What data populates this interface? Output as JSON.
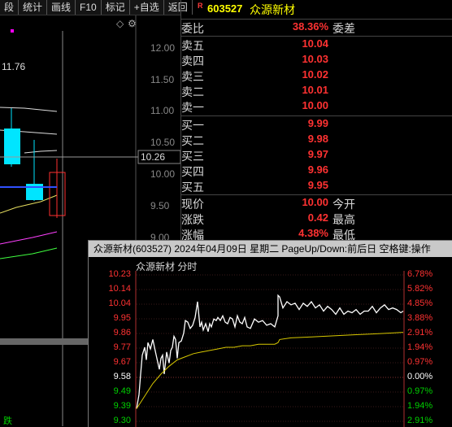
{
  "toolbar": [
    "段",
    "统计",
    "画线",
    "F10",
    "标记",
    "+自选",
    "返回"
  ],
  "kline": {
    "high_label": "11.76",
    "price_ticks": [
      "12.00",
      "11.50",
      "11.00",
      "10.50",
      "10.00",
      "9.50",
      "9.00"
    ],
    "current_price_tag": "10.26",
    "bottom_label": "跌"
  },
  "quote": {
    "r_mark": "R",
    "code": "603527",
    "name": "众源新材",
    "weibi_label": "委比",
    "weibi_value": "38.36%",
    "weicha_label": "委差",
    "asks": [
      {
        "label": "卖五",
        "price": "10.04"
      },
      {
        "label": "卖四",
        "price": "10.03"
      },
      {
        "label": "卖三",
        "price": "10.02"
      },
      {
        "label": "卖二",
        "price": "10.01"
      },
      {
        "label": "卖一",
        "price": "10.00"
      }
    ],
    "bids": [
      {
        "label": "买一",
        "price": "9.99"
      },
      {
        "label": "买二",
        "price": "9.98"
      },
      {
        "label": "买三",
        "price": "9.97"
      },
      {
        "label": "买四",
        "price": "9.96"
      },
      {
        "label": "买五",
        "price": "9.95"
      }
    ],
    "stats": [
      {
        "label": "现价",
        "value": "10.00",
        "label2": "今开"
      },
      {
        "label": "涨跌",
        "value": "0.42",
        "label2": "最高"
      },
      {
        "label": "涨幅",
        "value": "4.38%",
        "label2": "最低"
      }
    ]
  },
  "popup": {
    "title": "众源新材(603527) 2024年04月09日 星期二 PageUp/Down:前后日 空格键:操作",
    "subtitle": "众源新材  分时"
  },
  "chart_data": {
    "type": "line",
    "title": "众源新材  分时",
    "ylim": [
      9.3,
      10.23
    ],
    "price_ticks": [
      "10.23",
      "10.14",
      "10.04",
      "9.95",
      "9.86",
      "9.77",
      "9.67",
      "9.58",
      "9.49",
      "9.39",
      "9.30"
    ],
    "pct_ticks": [
      "6.78%",
      "5.82%",
      "4.85%",
      "3.88%",
      "2.91%",
      "1.94%",
      "0.97%",
      "0.00%",
      "0.97%",
      "1.94%",
      "2.91%"
    ],
    "tick_colors": [
      "#ff3232",
      "#ff3232",
      "#ff3232",
      "#ff3232",
      "#ff3232",
      "#ff3232",
      "#ff3232",
      "#ffffff",
      "#00d000",
      "#00d000",
      "#00d000"
    ],
    "series": [
      {
        "color": "#ffffff",
        "x": [
          0,
          3,
          5,
          7,
          10,
          12,
          14,
          17,
          20,
          22,
          25,
          28,
          30,
          32,
          34,
          37,
          40,
          42,
          44,
          46,
          48,
          50,
          52,
          55,
          58,
          60,
          63,
          66,
          69,
          72,
          75,
          78,
          80,
          82,
          85,
          88,
          90,
          92,
          95,
          98,
          100,
          103,
          106,
          109,
          112,
          115,
          118,
          121,
          124,
          127,
          130,
          133,
          136,
          140,
          145,
          150,
          155,
          160,
          165,
          170,
          174,
          174,
          176,
          180,
          185,
          190,
          195,
          200,
          205,
          210,
          215,
          220,
          225,
          230,
          235,
          240,
          245,
          250,
          255,
          260,
          265,
          270,
          275,
          280,
          285,
          290,
          295,
          300,
          305,
          310,
          315,
          320,
          325,
          328
        ],
        "y": [
          9.38,
          9.47,
          9.6,
          9.72,
          9.77,
          9.69,
          9.8,
          9.76,
          9.82,
          9.77,
          9.7,
          9.63,
          9.7,
          9.72,
          9.6,
          9.74,
          9.67,
          9.75,
          9.77,
          9.84,
          9.82,
          9.7,
          9.8,
          9.81,
          9.86,
          9.94,
          9.93,
          9.89,
          9.91,
          9.96,
          10.06,
          9.9,
          9.93,
          9.88,
          9.92,
          9.87,
          9.92,
          9.9,
          9.95,
          9.94,
          9.96,
          9.94,
          9.97,
          9.93,
          9.92,
          9.96,
          9.95,
          9.9,
          9.97,
          9.93,
          9.92,
          9.96,
          9.9,
          9.89,
          9.95,
          9.93,
          9.94,
          9.91,
          9.92,
          9.9,
          9.97,
          10.1,
          10.09,
          10.02,
          10.06,
          10.04,
          10.05,
          10.01,
          10.05,
          10.03,
          10.06,
          10.02,
          10.04,
          10.0,
          10.03,
          10.01,
          9.98,
          10.02,
          9.98,
          10.0,
          9.99,
          10.01,
          9.98,
          10.0,
          10.0,
          10.03,
          9.99,
          10.02,
          10.04,
          10.01,
          10.02,
          10.01,
          9.99,
          10.0
        ]
      },
      {
        "color": "#d8c800",
        "x": [
          0,
          10,
          20,
          30,
          40,
          50,
          60,
          70,
          80,
          90,
          100,
          110,
          120,
          130,
          140,
          150,
          160,
          170,
          174,
          176,
          190,
          210,
          230,
          250,
          270,
          290,
          310,
          328
        ],
        "y": [
          9.38,
          9.46,
          9.54,
          9.6,
          9.65,
          9.69,
          9.71,
          9.73,
          9.74,
          9.75,
          9.76,
          9.77,
          9.77,
          9.78,
          9.78,
          9.79,
          9.79,
          9.79,
          9.8,
          9.82,
          9.83,
          9.835,
          9.84,
          9.845,
          9.85,
          9.855,
          9.86,
          9.865
        ]
      }
    ]
  }
}
